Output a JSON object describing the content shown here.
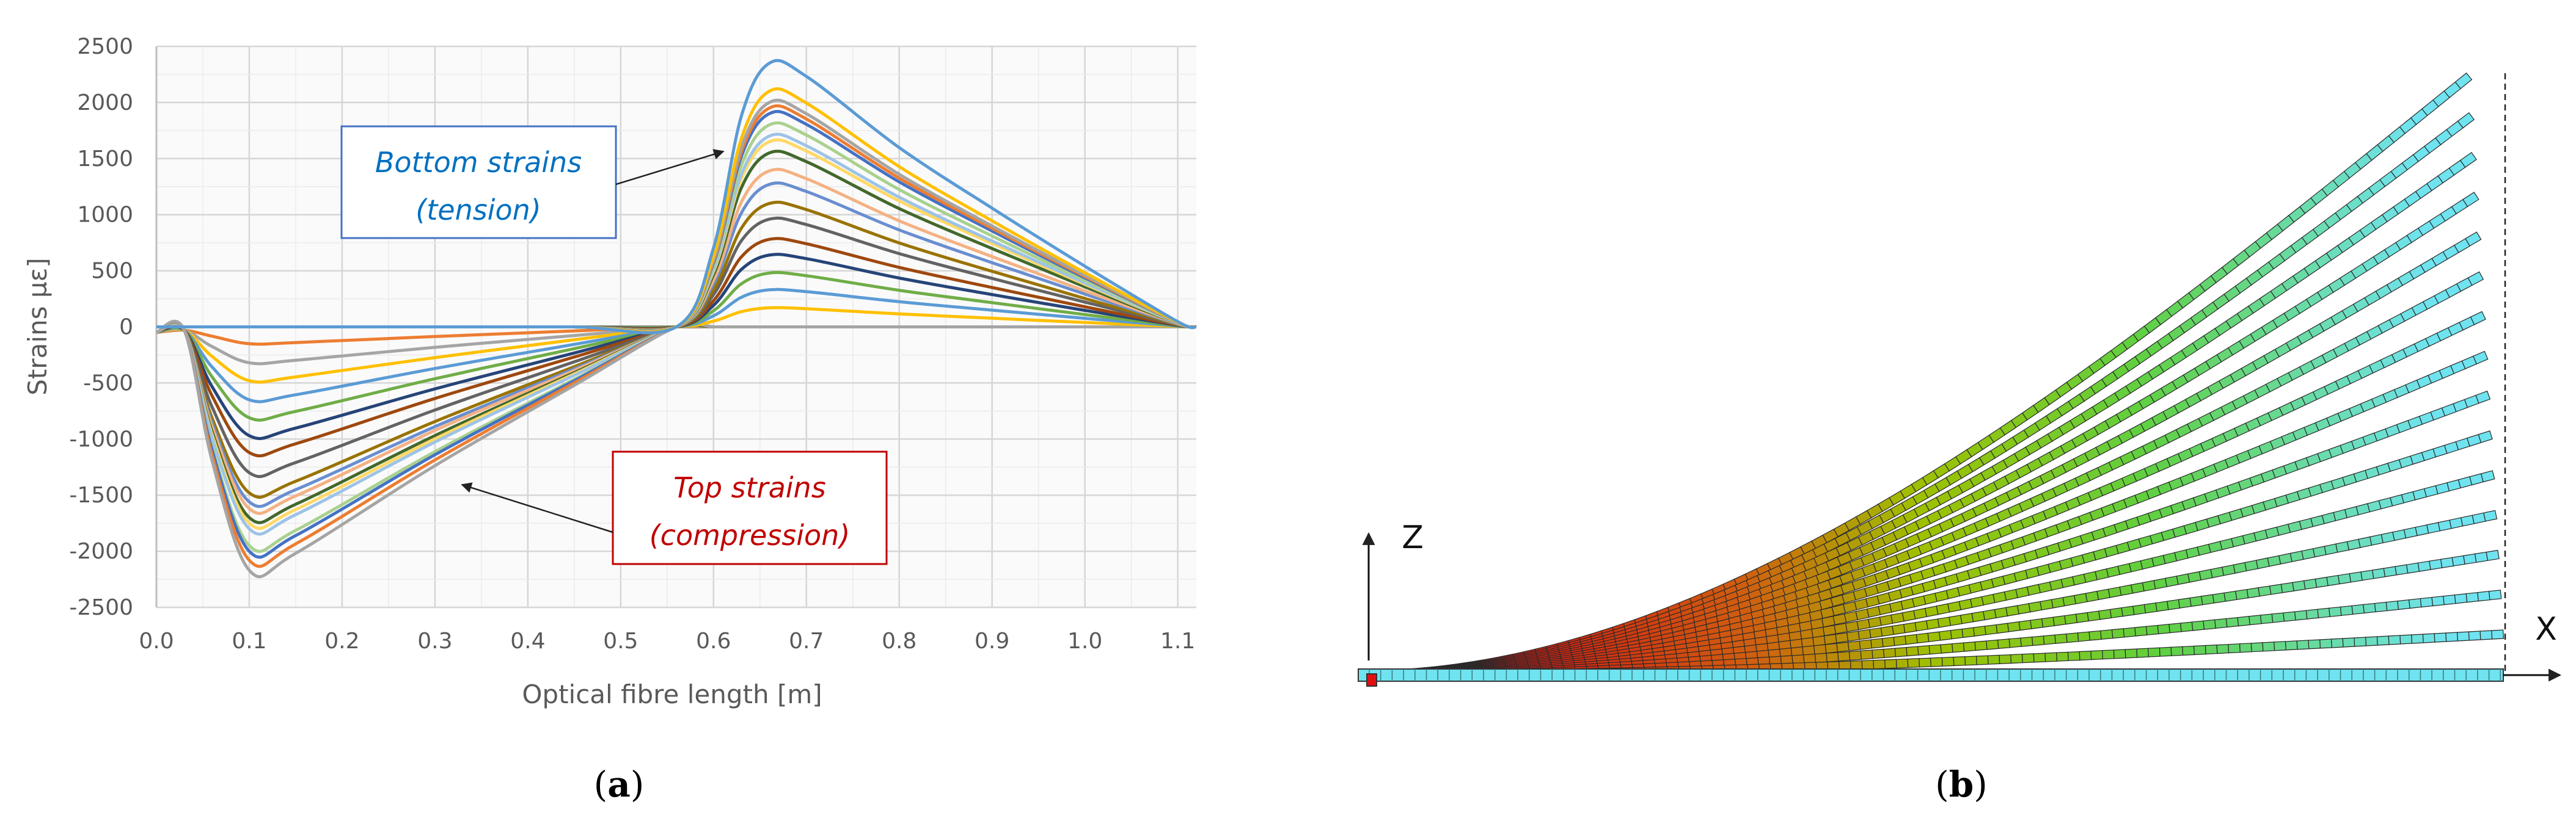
{
  "panel_a": {
    "label_open": "(",
    "label_letter": "a",
    "label_close": ")",
    "annotations": {
      "bottom": {
        "line1": "Bottom strains",
        "line2": "(tension)",
        "color": "#0070C0"
      },
      "top": {
        "line1": "Top strains",
        "line2": "(compression)",
        "color": "#C00000"
      }
    }
  },
  "chart_data": {
    "type": "line",
    "xlabel": "Optical fibre length [m]",
    "ylabel": "Strains µε]",
    "xlim": [
      0,
      1.12
    ],
    "ylim": [
      -2500,
      2500
    ],
    "xticks": [
      "0.0",
      "0.1",
      "0.2",
      "0.3",
      "0.4",
      "0.5",
      "0.6",
      "0.7",
      "0.8",
      "0.9",
      "1.0",
      "1.1"
    ],
    "yticks": [
      "2500",
      "2000",
      "1500",
      "1000",
      "500",
      "0",
      "-500",
      "-1000",
      "-1500",
      "-2000",
      "-2500"
    ],
    "grid": true,
    "legend": "none",
    "palette": [
      "#4472C4",
      "#ED7D31",
      "#A5A5A5",
      "#FFC000",
      "#5B9BD5",
      "#70AD47",
      "#264478",
      "#9E480E",
      "#636363",
      "#997300",
      "#698ED0",
      "#F4B183",
      "#43682B",
      "#FFD966",
      "#9DC3E6",
      "#A9D18E"
    ],
    "x": [
      0,
      0.03,
      0.06,
      0.1,
      0.15,
      0.3,
      0.45,
      0.56,
      0.6,
      0.63,
      0.66,
      0.7,
      0.8,
      0.9,
      1.0,
      1.1,
      1.12
    ],
    "series": [
      {
        "values": [
          0,
          0,
          0,
          0,
          0,
          0,
          0,
          0,
          0,
          0,
          0,
          0,
          0,
          0,
          0,
          0,
          0
        ]
      },
      {
        "values": [
          -50,
          -30,
          -83,
          -150,
          -140,
          -86,
          -36,
          0,
          0,
          0,
          0,
          0,
          0,
          0,
          0,
          0,
          0
        ]
      },
      {
        "values": [
          -50,
          -30,
          -176,
          -320,
          -298,
          -182,
          -77,
          0,
          0,
          0,
          0,
          0,
          0,
          0,
          0,
          0,
          0
        ]
      },
      {
        "values": [
          -50,
          -30,
          -264,
          -480,
          -446,
          -274,
          -115,
          0,
          0,
          0,
          0,
          0,
          0,
          0,
          0,
          0,
          0
        ]
      },
      {
        "values": [
          -50,
          -30,
          -358,
          -650,
          -605,
          -371,
          -156,
          0,
          0,
          0,
          0,
          0,
          0,
          0,
          0,
          0,
          0
        ]
      },
      {
        "values": [
          -50,
          -30,
          -446,
          -810,
          -753,
          -462,
          -194,
          0,
          0,
          0,
          0,
          0,
          0,
          0,
          0,
          0,
          0
        ]
      },
      {
        "values": [
          -50,
          -30,
          -534,
          -970,
          -902,
          -553,
          -233,
          0,
          0,
          0,
          0,
          0,
          0,
          0,
          0,
          0,
          0
        ]
      },
      {
        "values": [
          -50,
          -30,
          -616,
          -1120,
          -1042,
          -638,
          -269,
          0,
          0,
          0,
          0,
          0,
          0,
          0,
          0,
          0,
          0
        ]
      },
      {
        "values": [
          -50,
          -30,
          -715,
          -1300,
          -1209,
          -741,
          -312,
          0,
          0,
          0,
          0,
          0,
          0,
          0,
          0,
          0,
          0
        ]
      },
      {
        "values": [
          -50,
          -30,
          -814,
          -1480,
          -1376,
          -844,
          -355,
          0,
          0,
          0,
          0,
          0,
          0,
          0,
          0,
          0,
          0
        ]
      },
      {
        "values": [
          -50,
          -30,
          -858,
          -1560,
          -1451,
          -889,
          -374,
          0,
          0,
          0,
          0,
          0,
          0,
          0,
          0,
          0,
          0
        ]
      },
      {
        "values": [
          -50,
          -30,
          -891,
          -1620,
          -1507,
          -923,
          -389,
          0,
          0,
          0,
          0,
          0,
          0,
          0,
          0,
          0,
          0
        ]
      },
      {
        "values": [
          -50,
          -30,
          -935,
          -1700,
          -1581,
          -969,
          -408,
          0,
          0,
          0,
          0,
          0,
          0,
          0,
          0,
          0,
          0
        ]
      },
      {
        "values": [
          -50,
          -30,
          -963,
          -1750,
          -1628,
          -998,
          -420,
          0,
          0,
          0,
          0,
          0,
          0,
          0,
          0,
          0,
          0
        ]
      },
      {
        "values": [
          -50,
          -30,
          -990,
          -1800,
          -1674,
          -1026,
          -432,
          0,
          0,
          0,
          0,
          0,
          0,
          0,
          0,
          0,
          0
        ]
      },
      {
        "values": [
          -50,
          -30,
          -1073,
          -1950,
          -1814,
          -1112,
          -468,
          0,
          0,
          0,
          0,
          0,
          0,
          0,
          0,
          0,
          0
        ]
      },
      {
        "values": [
          -50,
          -30,
          -1100,
          -2000,
          -1860,
          -1140,
          -480,
          0,
          0,
          0,
          0,
          0,
          0,
          0,
          0,
          0,
          0
        ]
      },
      {
        "values": [
          -50,
          -30,
          -1144,
          -2080,
          -1934,
          -1186,
          -499,
          0,
          0,
          0,
          0,
          0,
          0,
          0,
          0,
          0,
          0
        ]
      },
      {
        "values": [
          -50,
          -30,
          -1194,
          -2170,
          -2018,
          -1237,
          -521,
          0,
          0,
          0,
          0,
          0,
          0,
          0,
          0,
          0,
          0
        ]
      },
      {
        "values": [
          0,
          0,
          0,
          0,
          0,
          0,
          0,
          0,
          51,
          136,
          170,
          162,
          116,
          77,
          39,
          3,
          0
        ]
      },
      {
        "values": [
          0,
          0,
          0,
          0,
          0,
          0,
          0,
          0,
          99,
          264,
          330,
          314,
          224,
          149,
          76,
          7,
          0
        ]
      },
      {
        "values": [
          0,
          0,
          0,
          0,
          0,
          0,
          0,
          0,
          144,
          384,
          480,
          456,
          326,
          216,
          110,
          10,
          0
        ]
      },
      {
        "values": [
          0,
          0,
          0,
          0,
          0,
          0,
          0,
          0,
          192,
          512,
          640,
          608,
          435,
          288,
          147,
          13,
          0
        ]
      },
      {
        "values": [
          0,
          0,
          0,
          0,
          0,
          0,
          0,
          0,
          234,
          624,
          780,
          741,
          530,
          351,
          179,
          16,
          0
        ]
      },
      {
        "values": [
          0,
          0,
          0,
          0,
          0,
          0,
          0,
          0,
          288,
          768,
          960,
          912,
          653,
          432,
          221,
          19,
          0
        ]
      },
      {
        "values": [
          0,
          0,
          0,
          0,
          0,
          0,
          0,
          0,
          330,
          880,
          1100,
          1045,
          748,
          495,
          253,
          22,
          0
        ]
      },
      {
        "values": [
          0,
          0,
          0,
          0,
          0,
          0,
          0,
          0,
          381,
          1016,
          1270,
          1207,
          864,
          572,
          292,
          25,
          0
        ]
      },
      {
        "values": [
          0,
          0,
          0,
          0,
          0,
          0,
          0,
          0,
          417,
          1112,
          1390,
          1321,
          945,
          626,
          320,
          28,
          0
        ]
      },
      {
        "values": [
          0,
          0,
          0,
          0,
          0,
          0,
          0,
          0,
          465,
          1240,
          1550,
          1473,
          1054,
          698,
          357,
          31,
          0
        ]
      },
      {
        "values": [
          0,
          0,
          0,
          0,
          0,
          0,
          0,
          0,
          495,
          1320,
          1650,
          1568,
          1122,
          743,
          380,
          33,
          0
        ]
      },
      {
        "values": [
          0,
          0,
          0,
          0,
          0,
          0,
          0,
          0,
          510,
          1360,
          1700,
          1615,
          1156,
          765,
          391,
          34,
          0
        ]
      },
      {
        "values": [
          0,
          0,
          0,
          0,
          0,
          0,
          0,
          0,
          540,
          1440,
          1800,
          1710,
          1224,
          810,
          414,
          36,
          0
        ]
      },
      {
        "values": [
          0,
          0,
          0,
          0,
          0,
          0,
          0,
          0,
          570,
          1520,
          1900,
          1805,
          1292,
          855,
          437,
          38,
          0
        ]
      },
      {
        "values": [
          0,
          0,
          0,
          0,
          0,
          0,
          0,
          0,
          585,
          1560,
          1950,
          1853,
          1326,
          878,
          449,
          39,
          0
        ]
      },
      {
        "values": [
          0,
          0,
          0,
          0,
          0,
          0,
          0,
          0,
          600,
          1600,
          2000,
          1900,
          1360,
          900,
          460,
          40,
          0
        ]
      },
      {
        "values": [
          0,
          0,
          0,
          0,
          0,
          0,
          0,
          0,
          630,
          1680,
          2100,
          1995,
          1428,
          945,
          483,
          42,
          0
        ]
      },
      {
        "values": [
          0,
          0,
          0,
          0,
          0,
          0,
          0,
          0,
          705,
          1880,
          2350,
          2233,
          1598,
          1058,
          541,
          47,
          0
        ]
      }
    ]
  },
  "panel_b": {
    "label_open": "(",
    "label_letter": "b",
    "label_close": ")",
    "axis_z": "Z",
    "axis_x": "X",
    "deflected_shapes": 15,
    "colors": {
      "beam_tip": "#6FE3EF",
      "beam_root": "#D01010",
      "support": "#E01010"
    }
  }
}
